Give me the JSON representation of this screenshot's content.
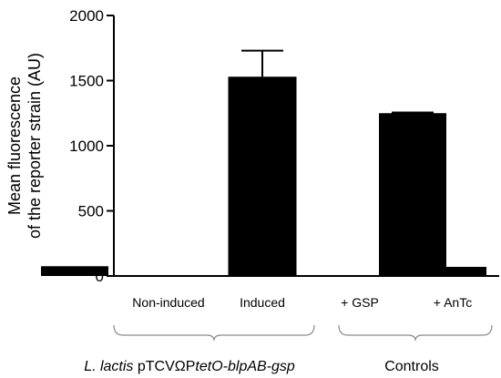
{
  "chart_data": {
    "type": "bar",
    "ylabel_lines": [
      "Mean fluorescence",
      "of the reporter strain (AU)"
    ],
    "ylim": [
      0,
      2000
    ],
    "yticks": [
      0,
      500,
      1000,
      1500,
      2000
    ],
    "categories": [
      "Non-induced",
      "Induced",
      "+ GSP",
      "+ AnTc"
    ],
    "values": [
      75,
      1530,
      1250,
      70
    ],
    "errors": [
      0,
      200,
      5,
      0
    ],
    "bar_color": "#000000",
    "groups": [
      {
        "name_parts": [
          {
            "text": "L. lactis",
            "italic": true
          },
          {
            "text": " pTCV",
            "italic": false
          },
          {
            "text": "Ω",
            "italic": false
          },
          {
            "text": "P",
            "italic": false
          },
          {
            "text": "tetO-blpAB-gsp",
            "italic": true
          }
        ],
        "categories": [
          "Non-induced",
          "Induced"
        ]
      },
      {
        "name_parts": [
          {
            "text": "Controls",
            "italic": false
          }
        ],
        "categories": [
          "+ GSP",
          "+ AnTc"
        ]
      }
    ]
  }
}
